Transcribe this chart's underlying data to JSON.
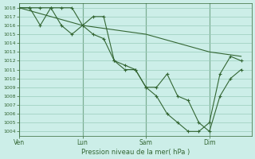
{
  "title": "Pression niveau de la mer( hPa )",
  "background_color": "#cceee8",
  "grid_color": "#99ccbb",
  "line_color": "#336633",
  "vline_color": "#336633",
  "ylim": [
    1003.5,
    1018.5
  ],
  "yticks": [
    1004,
    1005,
    1006,
    1007,
    1008,
    1009,
    1010,
    1011,
    1012,
    1013,
    1014,
    1015,
    1016,
    1017,
    1018
  ],
  "xtick_labels": [
    "Ven",
    "Lun",
    "Sam",
    "Dim"
  ],
  "xtick_positions": [
    0,
    6,
    12,
    18
  ],
  "xlim": [
    0,
    22
  ],
  "vline_positions": [
    0,
    6,
    12,
    18
  ],
  "series1_x": [
    0,
    1,
    2,
    3,
    4,
    5,
    6,
    7,
    8,
    9,
    10,
    11,
    12,
    13,
    14,
    15,
    16,
    17,
    18,
    19,
    20,
    21
  ],
  "series1_y": [
    1018,
    1018,
    1018,
    1018,
    1018,
    1018,
    1016,
    1017,
    1017,
    1012,
    1011.5,
    1011,
    1009,
    1009,
    1010.5,
    1008,
    1007.5,
    1005,
    1004,
    1008,
    1010,
    1011
  ],
  "series2_x": [
    0,
    1,
    2,
    3,
    4,
    5,
    6,
    7,
    8,
    9,
    10,
    11,
    12,
    13,
    14,
    15,
    16,
    17,
    18,
    19,
    20,
    21
  ],
  "series2_y": [
    1018,
    1018,
    1016,
    1018,
    1016,
    1015,
    1016,
    1015,
    1014.5,
    1012,
    1011,
    1011,
    1009,
    1008,
    1006,
    1005,
    1004,
    1004,
    1005,
    1010.5,
    1012.5,
    1012
  ],
  "series3_x": [
    0,
    6,
    12,
    18,
    21
  ],
  "series3_y": [
    1018,
    1016,
    1015,
    1013,
    1012.5
  ]
}
